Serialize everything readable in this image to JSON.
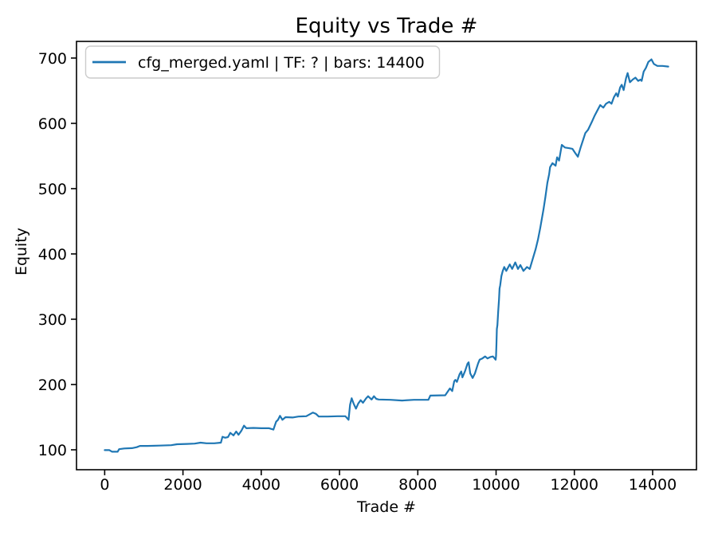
{
  "chart": {
    "title": "Equity vs Trade #",
    "xlabel": "Trade #",
    "ylabel": "Equity",
    "legend": {
      "label": "cfg_merged.yaml | TF: ? | bars: 14400"
    },
    "colors": {
      "line": "#1f77b4",
      "spine": "#000000",
      "tick": "#000000",
      "legend_border": "#cccccc",
      "background": "#ffffff"
    }
  },
  "chart_data": {
    "type": "line",
    "title": "Equity vs Trade #",
    "xlabel": "Trade #",
    "ylabel": "Equity",
    "xlim": [
      -720,
      15120
    ],
    "ylim": [
      69.5,
      725.5
    ],
    "xticks": [
      0,
      2000,
      4000,
      6000,
      8000,
      10000,
      12000,
      14000
    ],
    "yticks": [
      100,
      200,
      300,
      400,
      500,
      600,
      700
    ],
    "grid": false,
    "legend_position": "upper left",
    "series": [
      {
        "name": "cfg_merged.yaml | TF: ? | bars: 14400",
        "color": "#1f77b4",
        "points": [
          [
            0,
            99.5
          ],
          [
            120,
            99.5
          ],
          [
            190,
            97
          ],
          [
            330,
            97
          ],
          [
            370,
            101
          ],
          [
            500,
            102
          ],
          [
            700,
            102.5
          ],
          [
            820,
            104
          ],
          [
            900,
            106
          ],
          [
            1100,
            106
          ],
          [
            1400,
            106.5
          ],
          [
            1700,
            107
          ],
          [
            1850,
            108.5
          ],
          [
            2100,
            109
          ],
          [
            2300,
            109.5
          ],
          [
            2450,
            111
          ],
          [
            2600,
            110
          ],
          [
            2800,
            110
          ],
          [
            2970,
            111
          ],
          [
            3010,
            120
          ],
          [
            3080,
            118.5
          ],
          [
            3150,
            119.5
          ],
          [
            3210,
            126
          ],
          [
            3290,
            122
          ],
          [
            3360,
            128
          ],
          [
            3420,
            123
          ],
          [
            3490,
            129
          ],
          [
            3560,
            137
          ],
          [
            3620,
            133
          ],
          [
            3800,
            133.5
          ],
          [
            4000,
            133
          ],
          [
            4200,
            133
          ],
          [
            4310,
            131
          ],
          [
            4380,
            143
          ],
          [
            4430,
            146
          ],
          [
            4480,
            152
          ],
          [
            4540,
            146
          ],
          [
            4620,
            150
          ],
          [
            4800,
            149.5
          ],
          [
            4950,
            151
          ],
          [
            5150,
            151.5
          ],
          [
            5320,
            157
          ],
          [
            5400,
            155
          ],
          [
            5470,
            151
          ],
          [
            5700,
            151
          ],
          [
            5950,
            151.5
          ],
          [
            6150,
            151.5
          ],
          [
            6230,
            146
          ],
          [
            6270,
            169
          ],
          [
            6310,
            179
          ],
          [
            6360,
            171
          ],
          [
            6420,
            163
          ],
          [
            6480,
            171
          ],
          [
            6540,
            176
          ],
          [
            6600,
            172
          ],
          [
            6680,
            179
          ],
          [
            6730,
            182
          ],
          [
            6820,
            177
          ],
          [
            6880,
            182
          ],
          [
            6940,
            178
          ],
          [
            7000,
            177
          ],
          [
            7300,
            176.5
          ],
          [
            7600,
            175.5
          ],
          [
            7900,
            176.5
          ],
          [
            8270,
            176.5
          ],
          [
            8320,
            183
          ],
          [
            8700,
            183.5
          ],
          [
            8820,
            194
          ],
          [
            8880,
            190
          ],
          [
            8930,
            205
          ],
          [
            8960,
            207
          ],
          [
            9000,
            204
          ],
          [
            9070,
            216
          ],
          [
            9110,
            220
          ],
          [
            9140,
            211
          ],
          [
            9210,
            221
          ],
          [
            9270,
            232
          ],
          [
            9300,
            234
          ],
          [
            9340,
            217
          ],
          [
            9400,
            210
          ],
          [
            9460,
            217
          ],
          [
            9540,
            232
          ],
          [
            9580,
            238
          ],
          [
            9650,
            240
          ],
          [
            9720,
            243
          ],
          [
            9780,
            240
          ],
          [
            9850,
            242
          ],
          [
            9920,
            243
          ],
          [
            9990,
            238
          ],
          [
            10000,
            244
          ],
          [
            10010,
            262
          ],
          [
            10020,
            285
          ],
          [
            10035,
            291
          ],
          [
            10055,
            312
          ],
          [
            10075,
            330
          ],
          [
            10090,
            347
          ],
          [
            10105,
            352
          ],
          [
            10135,
            366
          ],
          [
            10170,
            374
          ],
          [
            10210,
            380
          ],
          [
            10260,
            374
          ],
          [
            10350,
            384
          ],
          [
            10410,
            377
          ],
          [
            10490,
            387
          ],
          [
            10560,
            377
          ],
          [
            10620,
            383
          ],
          [
            10700,
            374
          ],
          [
            10790,
            380
          ],
          [
            10860,
            377
          ],
          [
            10930,
            391
          ],
          [
            11010,
            407
          ],
          [
            11070,
            422
          ],
          [
            11130,
            440
          ],
          [
            11210,
            468
          ],
          [
            11260,
            487
          ],
          [
            11310,
            509
          ],
          [
            11355,
            522
          ],
          [
            11380,
            533
          ],
          [
            11440,
            539
          ],
          [
            11520,
            535
          ],
          [
            11560,
            548
          ],
          [
            11610,
            543
          ],
          [
            11680,
            567
          ],
          [
            11760,
            563
          ],
          [
            11860,
            562
          ],
          [
            11950,
            561
          ],
          [
            12030,
            554
          ],
          [
            12090,
            549
          ],
          [
            12160,
            563
          ],
          [
            12230,
            576
          ],
          [
            12280,
            585
          ],
          [
            12350,
            590
          ],
          [
            12460,
            604
          ],
          [
            12520,
            612
          ],
          [
            12600,
            621
          ],
          [
            12660,
            628
          ],
          [
            12740,
            624
          ],
          [
            12810,
            630
          ],
          [
            12890,
            633
          ],
          [
            12950,
            630
          ],
          [
            13010,
            640
          ],
          [
            13070,
            646
          ],
          [
            13110,
            641
          ],
          [
            13170,
            655
          ],
          [
            13210,
            659
          ],
          [
            13260,
            651
          ],
          [
            13320,
            669
          ],
          [
            13360,
            677
          ],
          [
            13420,
            663
          ],
          [
            13490,
            667
          ],
          [
            13560,
            670
          ],
          [
            13630,
            665
          ],
          [
            13690,
            667
          ],
          [
            13720,
            665
          ],
          [
            13770,
            679
          ],
          [
            13830,
            685
          ],
          [
            13890,
            694
          ],
          [
            13970,
            698
          ],
          [
            14030,
            691
          ],
          [
            14120,
            688
          ],
          [
            14250,
            688
          ],
          [
            14400,
            687
          ]
        ]
      }
    ]
  }
}
